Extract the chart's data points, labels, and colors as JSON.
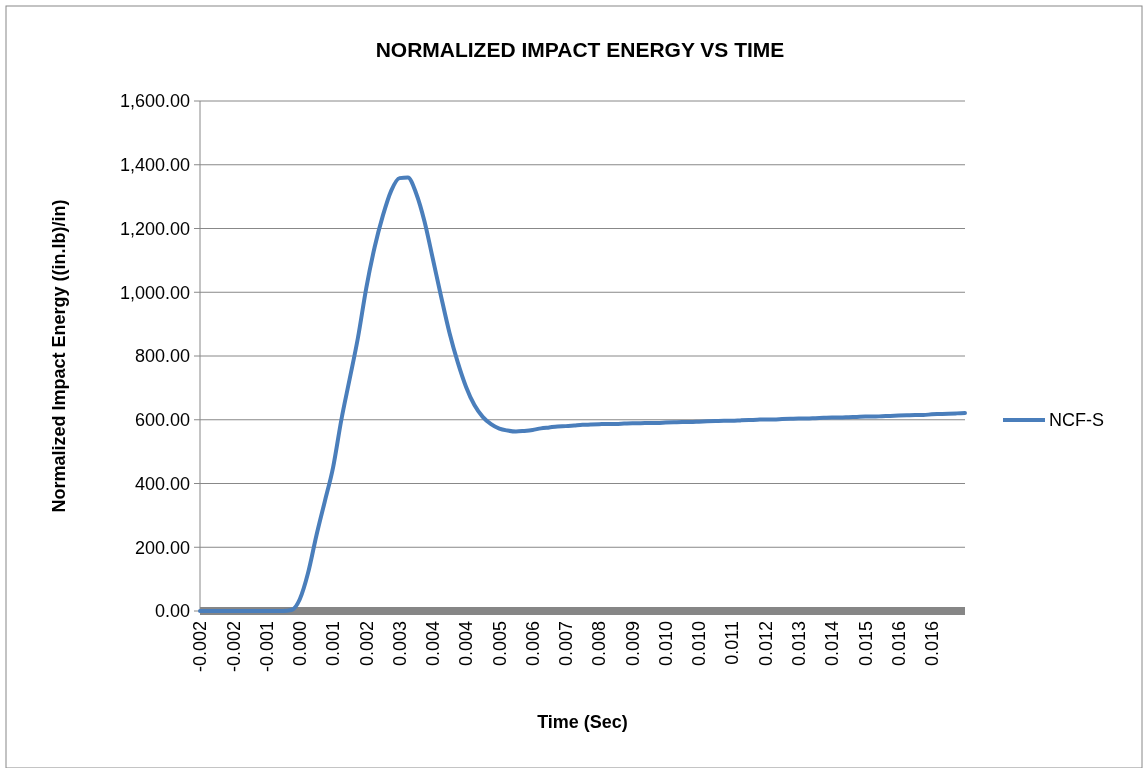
{
  "chart_data": {
    "type": "line",
    "title": "NORMALIZED IMPACT ENERGY VS TIME",
    "xlabel": "Time (Sec)",
    "ylabel": "Normalized Impact Energy ((in.lb)/in)",
    "categories": [
      "-0.002",
      null,
      null,
      null,
      "-0.002",
      null,
      null,
      null,
      "-0.001",
      null,
      null,
      null,
      "0.000",
      null,
      null,
      null,
      "0.001",
      null,
      null,
      null,
      "0.002",
      null,
      null,
      null,
      "0.003",
      null,
      null,
      null,
      "0.004",
      null,
      null,
      null,
      "0.004",
      null,
      null,
      null,
      "0.005",
      null,
      null,
      null,
      "0.006",
      null,
      null,
      null,
      "0.007",
      null,
      null,
      null,
      "0.008",
      null,
      null,
      null,
      "0.009",
      null,
      null,
      null,
      "0.010",
      null,
      null,
      null,
      "0.010",
      null,
      null,
      null,
      "0.011",
      null,
      null,
      null,
      "0.012",
      null,
      null,
      null,
      "0.013",
      null,
      null,
      null,
      "0.014",
      null,
      null,
      null,
      "0.015",
      null,
      null,
      null,
      "0.016",
      null,
      null,
      null,
      "0.016",
      null,
      null,
      null,
      null
    ],
    "series": [
      {
        "name": "NCF-S",
        "color": "#4a7ebb",
        "values": [
          0,
          0,
          0,
          0,
          0,
          0,
          0,
          0,
          0,
          0,
          0,
          3,
          37,
          120,
          237,
          343,
          450,
          600,
          728,
          858,
          1014,
          1141,
          1241,
          1319,
          1358,
          1360,
          1310,
          1222,
          1105,
          986,
          873,
          780,
          703,
          646,
          609,
          586,
          572,
          566,
          563,
          565,
          568,
          573,
          576,
          579,
          580,
          582,
          584,
          585,
          586,
          587,
          587,
          588,
          589,
          589,
          590,
          590,
          591,
          592,
          593,
          593,
          594,
          595,
          596,
          597,
          597,
          598,
          599,
          600,
          601,
          601,
          602,
          603,
          604,
          604,
          605,
          606,
          607,
          607,
          608,
          609,
          610,
          610,
          611,
          612,
          613,
          614,
          615,
          615,
          617,
          618,
          619,
          620,
          621
        ]
      }
    ],
    "ylim": [
      0,
      1600
    ],
    "yticks": [
      {
        "value": 0,
        "label": "0.00"
      },
      {
        "value": 200,
        "label": "200.00"
      },
      {
        "value": 400,
        "label": "400.00"
      },
      {
        "value": 600,
        "label": "600.00"
      },
      {
        "value": 800,
        "label": "800.00"
      },
      {
        "value": 1000,
        "label": "1,000.00"
      },
      {
        "value": 1200,
        "label": "1,200.00"
      },
      {
        "value": 1400,
        "label": "1,400.00"
      },
      {
        "value": 1600,
        "label": "1,600.00"
      }
    ],
    "grid": "y",
    "legend": "right",
    "marker": "none",
    "line_style": "solid"
  }
}
